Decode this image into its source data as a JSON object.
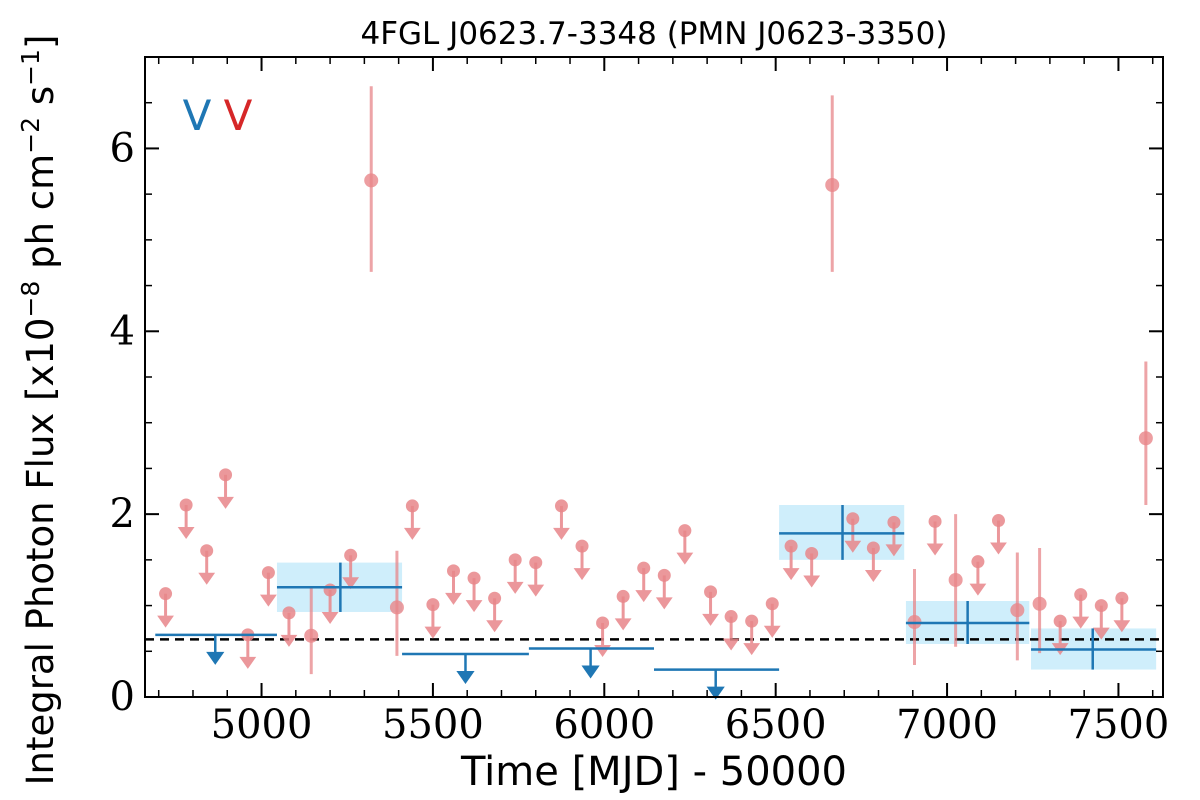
{
  "chart_data": {
    "type": "scatter",
    "title": "4FGL J0623.7-3348 (PMN J0623-3350)",
    "xlabel": "Time [MJD] - 50000",
    "ylabel": "Integral Photon Flux [x10",
    "ylabel_exp1": "−8",
    "ylabel_mid": " ph cm",
    "ylabel_exp2": "−2",
    "ylabel_mid2": " s",
    "ylabel_exp3": "−1",
    "ylabel_end": "]",
    "xlim": [
      4660,
      7630
    ],
    "ylim": [
      0,
      7
    ],
    "x_ticks": [
      5000,
      5500,
      6000,
      6500,
      7000,
      7500
    ],
    "y_ticks": [
      0,
      2,
      4,
      6
    ],
    "x_tick_labels": [
      "5000",
      "5500",
      "6000",
      "6500",
      "7000",
      "7500"
    ],
    "y_tick_labels": [
      "0",
      "2",
      "4",
      "6"
    ],
    "grid": false,
    "legend": {
      "placement": "top-left",
      "entries": [
        {
          "symbol": "V",
          "color": "#1f77b4"
        },
        {
          "symbol": "V",
          "color": "#d62728"
        }
      ]
    },
    "reference_line": {
      "y": 0.63,
      "style": "dashed",
      "color": "#000000"
    },
    "series": [
      {
        "kind": "short-bins",
        "color": "#e8868a",
        "detections": [
          {
            "x": 5145,
            "y": 0.67,
            "ylo": 0.25,
            "yhi": 1.2
          },
          {
            "x": 5320,
            "y": 5.65,
            "ylo": 4.65,
            "yhi": 6.68
          },
          {
            "x": 5395,
            "y": 0.98,
            "ylo": 0.45,
            "yhi": 1.6
          },
          {
            "x": 6665,
            "y": 5.6,
            "ylo": 4.65,
            "yhi": 6.58
          },
          {
            "x": 6905,
            "y": 0.82,
            "ylo": 0.35,
            "yhi": 1.4
          },
          {
            "x": 7025,
            "y": 1.28,
            "ylo": 0.55,
            "yhi": 2.0
          },
          {
            "x": 7205,
            "y": 0.95,
            "ylo": 0.4,
            "yhi": 1.58
          },
          {
            "x": 7270,
            "y": 1.02,
            "ylo": 0.48,
            "yhi": 1.63
          },
          {
            "x": 7580,
            "y": 2.83,
            "ylo": 2.1,
            "yhi": 3.67
          }
        ],
        "upper_limits": [
          {
            "x": 4720,
            "y": 1.13
          },
          {
            "x": 4780,
            "y": 2.1
          },
          {
            "x": 4840,
            "y": 1.6
          },
          {
            "x": 4895,
            "y": 2.43
          },
          {
            "x": 4960,
            "y": 0.68
          },
          {
            "x": 5020,
            "y": 1.36
          },
          {
            "x": 5080,
            "y": 0.92
          },
          {
            "x": 5200,
            "y": 1.17
          },
          {
            "x": 5260,
            "y": 1.55
          },
          {
            "x": 5440,
            "y": 2.09
          },
          {
            "x": 5500,
            "y": 1.01
          },
          {
            "x": 5560,
            "y": 1.38
          },
          {
            "x": 5620,
            "y": 1.3
          },
          {
            "x": 5680,
            "y": 1.08
          },
          {
            "x": 5740,
            "y": 1.5
          },
          {
            "x": 5800,
            "y": 1.47
          },
          {
            "x": 5875,
            "y": 2.09
          },
          {
            "x": 5935,
            "y": 1.65
          },
          {
            "x": 5995,
            "y": 0.81
          },
          {
            "x": 6055,
            "y": 1.1
          },
          {
            "x": 6115,
            "y": 1.41
          },
          {
            "x": 6175,
            "y": 1.33
          },
          {
            "x": 6235,
            "y": 1.82
          },
          {
            "x": 6310,
            "y": 1.15
          },
          {
            "x": 6370,
            "y": 0.88
          },
          {
            "x": 6430,
            "y": 0.83
          },
          {
            "x": 6490,
            "y": 1.02
          },
          {
            "x": 6545,
            "y": 1.65
          },
          {
            "x": 6605,
            "y": 1.57
          },
          {
            "x": 6725,
            "y": 1.95
          },
          {
            "x": 6785,
            "y": 1.63
          },
          {
            "x": 6845,
            "y": 1.91
          },
          {
            "x": 6965,
            "y": 1.92
          },
          {
            "x": 7090,
            "y": 1.48
          },
          {
            "x": 7150,
            "y": 1.93
          },
          {
            "x": 7330,
            "y": 0.83
          },
          {
            "x": 7390,
            "y": 1.12
          },
          {
            "x": 7450,
            "y": 1.0
          },
          {
            "x": 7510,
            "y": 1.08
          }
        ]
      },
      {
        "kind": "long-bins",
        "color": "#1f77b4",
        "band_color": "#cfeefb",
        "detections": [
          {
            "x": 5230,
            "x0": 5045,
            "x1": 5410,
            "y": 1.2,
            "ylo": 0.93,
            "yhi": 1.47
          },
          {
            "x": 6695,
            "x0": 6510,
            "x1": 6875,
            "y": 1.79,
            "ylo": 1.5,
            "yhi": 2.1
          },
          {
            "x": 7060,
            "x0": 6880,
            "x1": 7240,
            "y": 0.81,
            "ylo": 0.58,
            "yhi": 1.05
          },
          {
            "x": 7425,
            "x0": 7245,
            "x1": 7610,
            "y": 0.52,
            "ylo": 0.3,
            "yhi": 0.75
          }
        ],
        "upper_limits": [
          {
            "x": 4865,
            "x0": 4690,
            "x1": 5045,
            "y": 0.68
          },
          {
            "x": 5595,
            "x0": 5410,
            "x1": 5780,
            "y": 0.47
          },
          {
            "x": 5960,
            "x0": 5780,
            "x1": 6145,
            "y": 0.53
          },
          {
            "x": 6325,
            "x0": 6145,
            "x1": 6510,
            "y": 0.3
          }
        ]
      }
    ]
  }
}
